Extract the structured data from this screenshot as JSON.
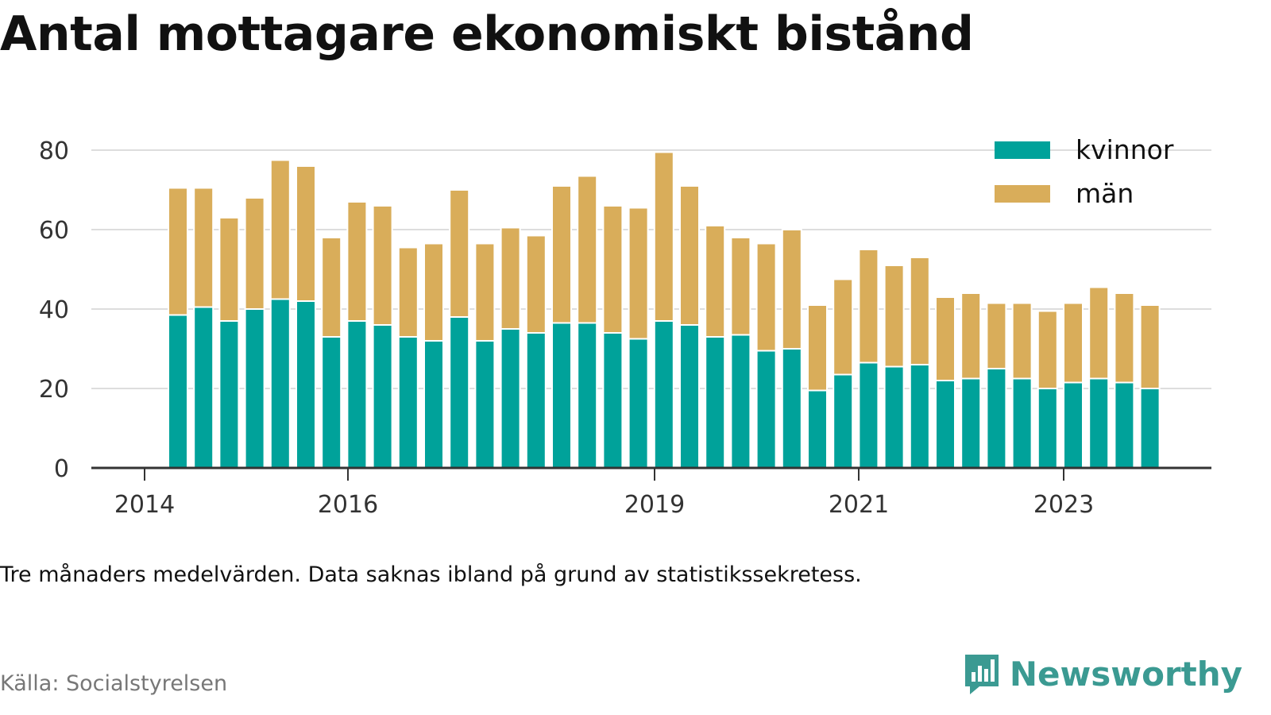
{
  "title": "Antal mottagare ekonomiskt bistånd",
  "note": "Tre månaders medelvärden. Data saknas ibland på grund av statistikssekretess.",
  "source": "Källa: Socialstyrelsen",
  "brand": {
    "name": "Newsworthy",
    "icon": "newsworthy-logo-icon",
    "color": "#3b9a92"
  },
  "colors": {
    "kvinnor": "#00a29a",
    "man": "#d9ad5a",
    "grid": "#dddddd",
    "axis": "#333333"
  },
  "chart_data": {
    "type": "bar",
    "stacked": true,
    "legend_position": "top-right",
    "grid": true,
    "ylim": [
      0,
      80
    ],
    "yticks": [
      "0",
      "20",
      "40",
      "60",
      "80"
    ],
    "xticks": [
      "2014",
      "2016",
      "2019",
      "2021",
      "2023"
    ],
    "series": [
      {
        "name": "kvinnor",
        "values": [
          38.5,
          40.5,
          37,
          40,
          42.5,
          42,
          33,
          37,
          36,
          33,
          32,
          38,
          32,
          35,
          34,
          36.5,
          36.5,
          34,
          32.5,
          37,
          36,
          33,
          33.5,
          29.5,
          30,
          19.5,
          23.5,
          26.5,
          25.5,
          26,
          22,
          22.5,
          25,
          22.5,
          20,
          21.5,
          22.5,
          21.5,
          20
        ]
      },
      {
        "name": "män",
        "values": [
          32,
          30,
          26,
          28,
          35,
          34,
          25,
          30,
          30,
          22.5,
          24.5,
          32,
          24.5,
          25.5,
          24.5,
          34.5,
          37,
          32,
          33,
          42.5,
          35,
          28,
          24.5,
          27,
          30,
          21.5,
          24,
          28.5,
          25.5,
          27,
          21,
          21.5,
          16.5,
          19,
          19.5,
          20,
          23,
          22.5,
          21
        ]
      }
    ]
  }
}
